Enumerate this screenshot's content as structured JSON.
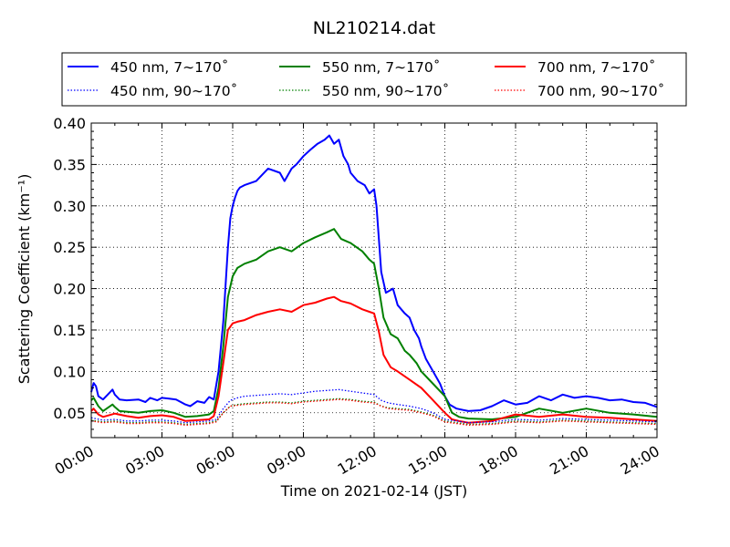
{
  "chart_data": {
    "type": "line",
    "title": "NL210214.dat",
    "xlabel": "Time on 2021-02-14 (JST)",
    "ylabel": "Scattering Coefficient (km⁻¹)",
    "x_unit": "hours",
    "xlim": [
      0,
      24
    ],
    "ylim": [
      0.02,
      0.4
    ],
    "x_ticks": [
      0,
      3,
      6,
      9,
      12,
      15,
      18,
      21,
      24
    ],
    "x_tick_labels": [
      "00:00",
      "03:00",
      "06:00",
      "09:00",
      "12:00",
      "15:00",
      "18:00",
      "21:00",
      "24:00"
    ],
    "y_ticks": [
      0.05,
      0.1,
      0.15,
      0.2,
      0.25,
      0.3,
      0.35,
      0.4
    ],
    "y_tick_labels": [
      "0.05",
      "0.10",
      "0.15",
      "0.20",
      "0.25",
      "0.30",
      "0.35",
      "0.40"
    ],
    "grid": true,
    "legend_placement": "top",
    "series": [
      {
        "name": "450 nm, 7∼170˚",
        "color": "#0000ff",
        "style": "solid",
        "x": [
          0,
          0.1,
          0.2,
          0.3,
          0.5,
          0.7,
          0.9,
          1.0,
          1.2,
          1.5,
          2.0,
          2.3,
          2.5,
          2.8,
          3.0,
          3.3,
          3.6,
          4.0,
          4.2,
          4.5,
          4.8,
          5.0,
          5.2,
          5.4,
          5.6,
          5.8,
          5.9,
          6.0,
          6.1,
          6.2,
          6.3,
          6.5,
          7.0,
          7.5,
          8.0,
          8.2,
          8.5,
          8.7,
          9.0,
          9.3,
          9.6,
          9.9,
          10.1,
          10.3,
          10.5,
          10.7,
          10.9,
          11.0,
          11.3,
          11.6,
          11.8,
          12.0,
          12.1,
          12.2,
          12.3,
          12.5,
          12.8,
          13.0,
          13.3,
          13.5,
          13.7,
          13.9,
          14.0,
          14.2,
          14.5,
          14.8,
          15.0,
          15.2,
          15.5,
          16.0,
          16.5,
          17.0,
          17.5,
          18.0,
          18.5,
          19.0,
          19.5,
          20.0,
          20.5,
          21.0,
          21.5,
          22.0,
          22.5,
          23.0,
          23.5,
          24.0
        ],
        "y": [
          0.075,
          0.086,
          0.082,
          0.07,
          0.066,
          0.072,
          0.078,
          0.072,
          0.066,
          0.065,
          0.066,
          0.063,
          0.068,
          0.065,
          0.068,
          0.067,
          0.066,
          0.06,
          0.058,
          0.064,
          0.062,
          0.069,
          0.066,
          0.1,
          0.16,
          0.25,
          0.285,
          0.3,
          0.31,
          0.318,
          0.322,
          0.325,
          0.33,
          0.345,
          0.34,
          0.33,
          0.345,
          0.35,
          0.36,
          0.368,
          0.375,
          0.38,
          0.385,
          0.375,
          0.38,
          0.36,
          0.35,
          0.34,
          0.33,
          0.325,
          0.315,
          0.32,
          0.3,
          0.26,
          0.22,
          0.195,
          0.2,
          0.18,
          0.17,
          0.165,
          0.15,
          0.14,
          0.13,
          0.115,
          0.1,
          0.085,
          0.07,
          0.06,
          0.055,
          0.052,
          0.053,
          0.058,
          0.065,
          0.06,
          0.062,
          0.07,
          0.065,
          0.072,
          0.068,
          0.07,
          0.068,
          0.065,
          0.066,
          0.063,
          0.062,
          0.057
        ]
      },
      {
        "name": "550 nm, 7∼170˚",
        "color": "#008000",
        "style": "solid",
        "x": [
          0,
          0.1,
          0.3,
          0.5,
          0.9,
          1.0,
          1.2,
          2.0,
          2.5,
          3.0,
          3.5,
          4.0,
          4.5,
          5.0,
          5.2,
          5.4,
          5.6,
          5.8,
          6.0,
          6.2,
          6.5,
          7.0,
          7.5,
          8.0,
          8.5,
          9.0,
          9.5,
          10.0,
          10.3,
          10.6,
          11.0,
          11.5,
          11.8,
          12.0,
          12.2,
          12.4,
          12.7,
          13.0,
          13.3,
          13.5,
          13.8,
          14.0,
          14.5,
          15.0,
          15.3,
          15.6,
          16.0,
          17.0,
          18.0,
          19.0,
          20.0,
          21.0,
          22.0,
          23.0,
          24.0
        ],
        "y": [
          0.065,
          0.068,
          0.058,
          0.052,
          0.06,
          0.057,
          0.052,
          0.05,
          0.052,
          0.053,
          0.05,
          0.045,
          0.046,
          0.048,
          0.052,
          0.08,
          0.13,
          0.19,
          0.215,
          0.225,
          0.23,
          0.235,
          0.245,
          0.25,
          0.245,
          0.255,
          0.262,
          0.268,
          0.272,
          0.26,
          0.255,
          0.245,
          0.235,
          0.23,
          0.2,
          0.165,
          0.145,
          0.14,
          0.125,
          0.12,
          0.11,
          0.1,
          0.085,
          0.07,
          0.05,
          0.045,
          0.043,
          0.042,
          0.045,
          0.055,
          0.05,
          0.055,
          0.05,
          0.048,
          0.045
        ]
      },
      {
        "name": "700 nm, 7∼170˚",
        "color": "#ff0000",
        "style": "solid",
        "x": [
          0,
          0.1,
          0.3,
          0.5,
          1.0,
          1.5,
          2.0,
          2.5,
          3.0,
          3.5,
          4.0,
          4.5,
          5.0,
          5.2,
          5.4,
          5.6,
          5.8,
          6.0,
          6.2,
          6.5,
          7.0,
          7.5,
          8.0,
          8.5,
          9.0,
          9.5,
          10.0,
          10.3,
          10.6,
          11.0,
          11.5,
          11.8,
          12.0,
          12.2,
          12.4,
          12.7,
          13.0,
          13.5,
          14.0,
          14.5,
          15.0,
          15.3,
          15.6,
          16.0,
          17.0,
          18.0,
          19.0,
          20.0,
          21.0,
          22.0,
          23.0,
          24.0
        ],
        "y": [
          0.052,
          0.055,
          0.048,
          0.045,
          0.049,
          0.046,
          0.044,
          0.046,
          0.047,
          0.045,
          0.04,
          0.041,
          0.042,
          0.046,
          0.07,
          0.11,
          0.15,
          0.158,
          0.16,
          0.162,
          0.168,
          0.172,
          0.175,
          0.172,
          0.18,
          0.183,
          0.188,
          0.19,
          0.185,
          0.182,
          0.175,
          0.172,
          0.17,
          0.148,
          0.12,
          0.105,
          0.1,
          0.09,
          0.08,
          0.065,
          0.05,
          0.042,
          0.04,
          0.038,
          0.04,
          0.048,
          0.045,
          0.048,
          0.045,
          0.044,
          0.042,
          0.04
        ]
      },
      {
        "name": "450 nm, 90∼170˚",
        "color": "#0000ff",
        "style": "dotted",
        "x": [
          0,
          0.5,
          1.0,
          1.5,
          2.0,
          2.5,
          3.0,
          3.5,
          4.0,
          4.5,
          5.0,
          5.3,
          5.6,
          5.9,
          6.2,
          6.5,
          7.0,
          7.5,
          8.0,
          8.5,
          9.0,
          9.5,
          10.0,
          10.5,
          11.0,
          11.5,
          12.0,
          12.3,
          12.6,
          13.0,
          13.5,
          14.0,
          14.5,
          15.0,
          15.5,
          16.0,
          17.0,
          18.0,
          19.0,
          20.0,
          21.0,
          22.0,
          23.0,
          24.0
        ],
        "y": [
          0.044,
          0.041,
          0.042,
          0.04,
          0.04,
          0.041,
          0.041,
          0.04,
          0.038,
          0.039,
          0.04,
          0.042,
          0.055,
          0.065,
          0.068,
          0.07,
          0.071,
          0.072,
          0.073,
          0.072,
          0.074,
          0.076,
          0.077,
          0.078,
          0.076,
          0.074,
          0.072,
          0.065,
          0.062,
          0.06,
          0.058,
          0.055,
          0.05,
          0.042,
          0.04,
          0.038,
          0.039,
          0.042,
          0.041,
          0.043,
          0.042,
          0.041,
          0.04,
          0.039
        ]
      },
      {
        "name": "550 nm, 90∼170˚",
        "color": "#008000",
        "style": "dotted",
        "x": [
          0,
          0.5,
          1.0,
          1.5,
          2.0,
          2.5,
          3.0,
          3.5,
          4.0,
          4.5,
          5.0,
          5.3,
          5.6,
          5.9,
          6.2,
          6.5,
          7.0,
          7.5,
          8.0,
          8.5,
          9.0,
          9.5,
          10.0,
          10.5,
          11.0,
          11.5,
          12.0,
          12.3,
          12.6,
          13.0,
          13.5,
          14.0,
          14.5,
          15.0,
          15.5,
          16.0,
          17.0,
          18.0,
          19.0,
          20.0,
          21.0,
          22.0,
          23.0,
          24.0
        ],
        "y": [
          0.041,
          0.039,
          0.04,
          0.038,
          0.038,
          0.039,
          0.039,
          0.038,
          0.036,
          0.037,
          0.038,
          0.04,
          0.05,
          0.058,
          0.06,
          0.061,
          0.062,
          0.063,
          0.063,
          0.062,
          0.064,
          0.065,
          0.066,
          0.067,
          0.066,
          0.064,
          0.063,
          0.058,
          0.056,
          0.055,
          0.054,
          0.051,
          0.047,
          0.04,
          0.038,
          0.036,
          0.037,
          0.04,
          0.039,
          0.041,
          0.04,
          0.039,
          0.038,
          0.037
        ]
      },
      {
        "name": "700 nm, 90∼170˚",
        "color": "#ff0000",
        "style": "dotted",
        "x": [
          0,
          0.5,
          1.0,
          1.5,
          2.0,
          2.5,
          3.0,
          3.5,
          4.0,
          4.5,
          5.0,
          5.3,
          5.6,
          5.9,
          6.2,
          6.5,
          7.0,
          7.5,
          8.0,
          8.5,
          9.0,
          9.5,
          10.0,
          10.5,
          11.0,
          11.5,
          12.0,
          12.3,
          12.6,
          13.0,
          13.5,
          14.0,
          14.5,
          15.0,
          15.5,
          16.0,
          17.0,
          18.0,
          19.0,
          20.0,
          21.0,
          22.0,
          23.0,
          24.0
        ],
        "y": [
          0.04,
          0.038,
          0.039,
          0.037,
          0.037,
          0.038,
          0.038,
          0.037,
          0.035,
          0.036,
          0.037,
          0.039,
          0.05,
          0.058,
          0.059,
          0.06,
          0.061,
          0.062,
          0.062,
          0.061,
          0.063,
          0.064,
          0.065,
          0.066,
          0.065,
          0.063,
          0.062,
          0.058,
          0.055,
          0.054,
          0.053,
          0.05,
          0.046,
          0.039,
          0.037,
          0.035,
          0.036,
          0.039,
          0.038,
          0.04,
          0.039,
          0.038,
          0.037,
          0.036
        ]
      }
    ]
  }
}
